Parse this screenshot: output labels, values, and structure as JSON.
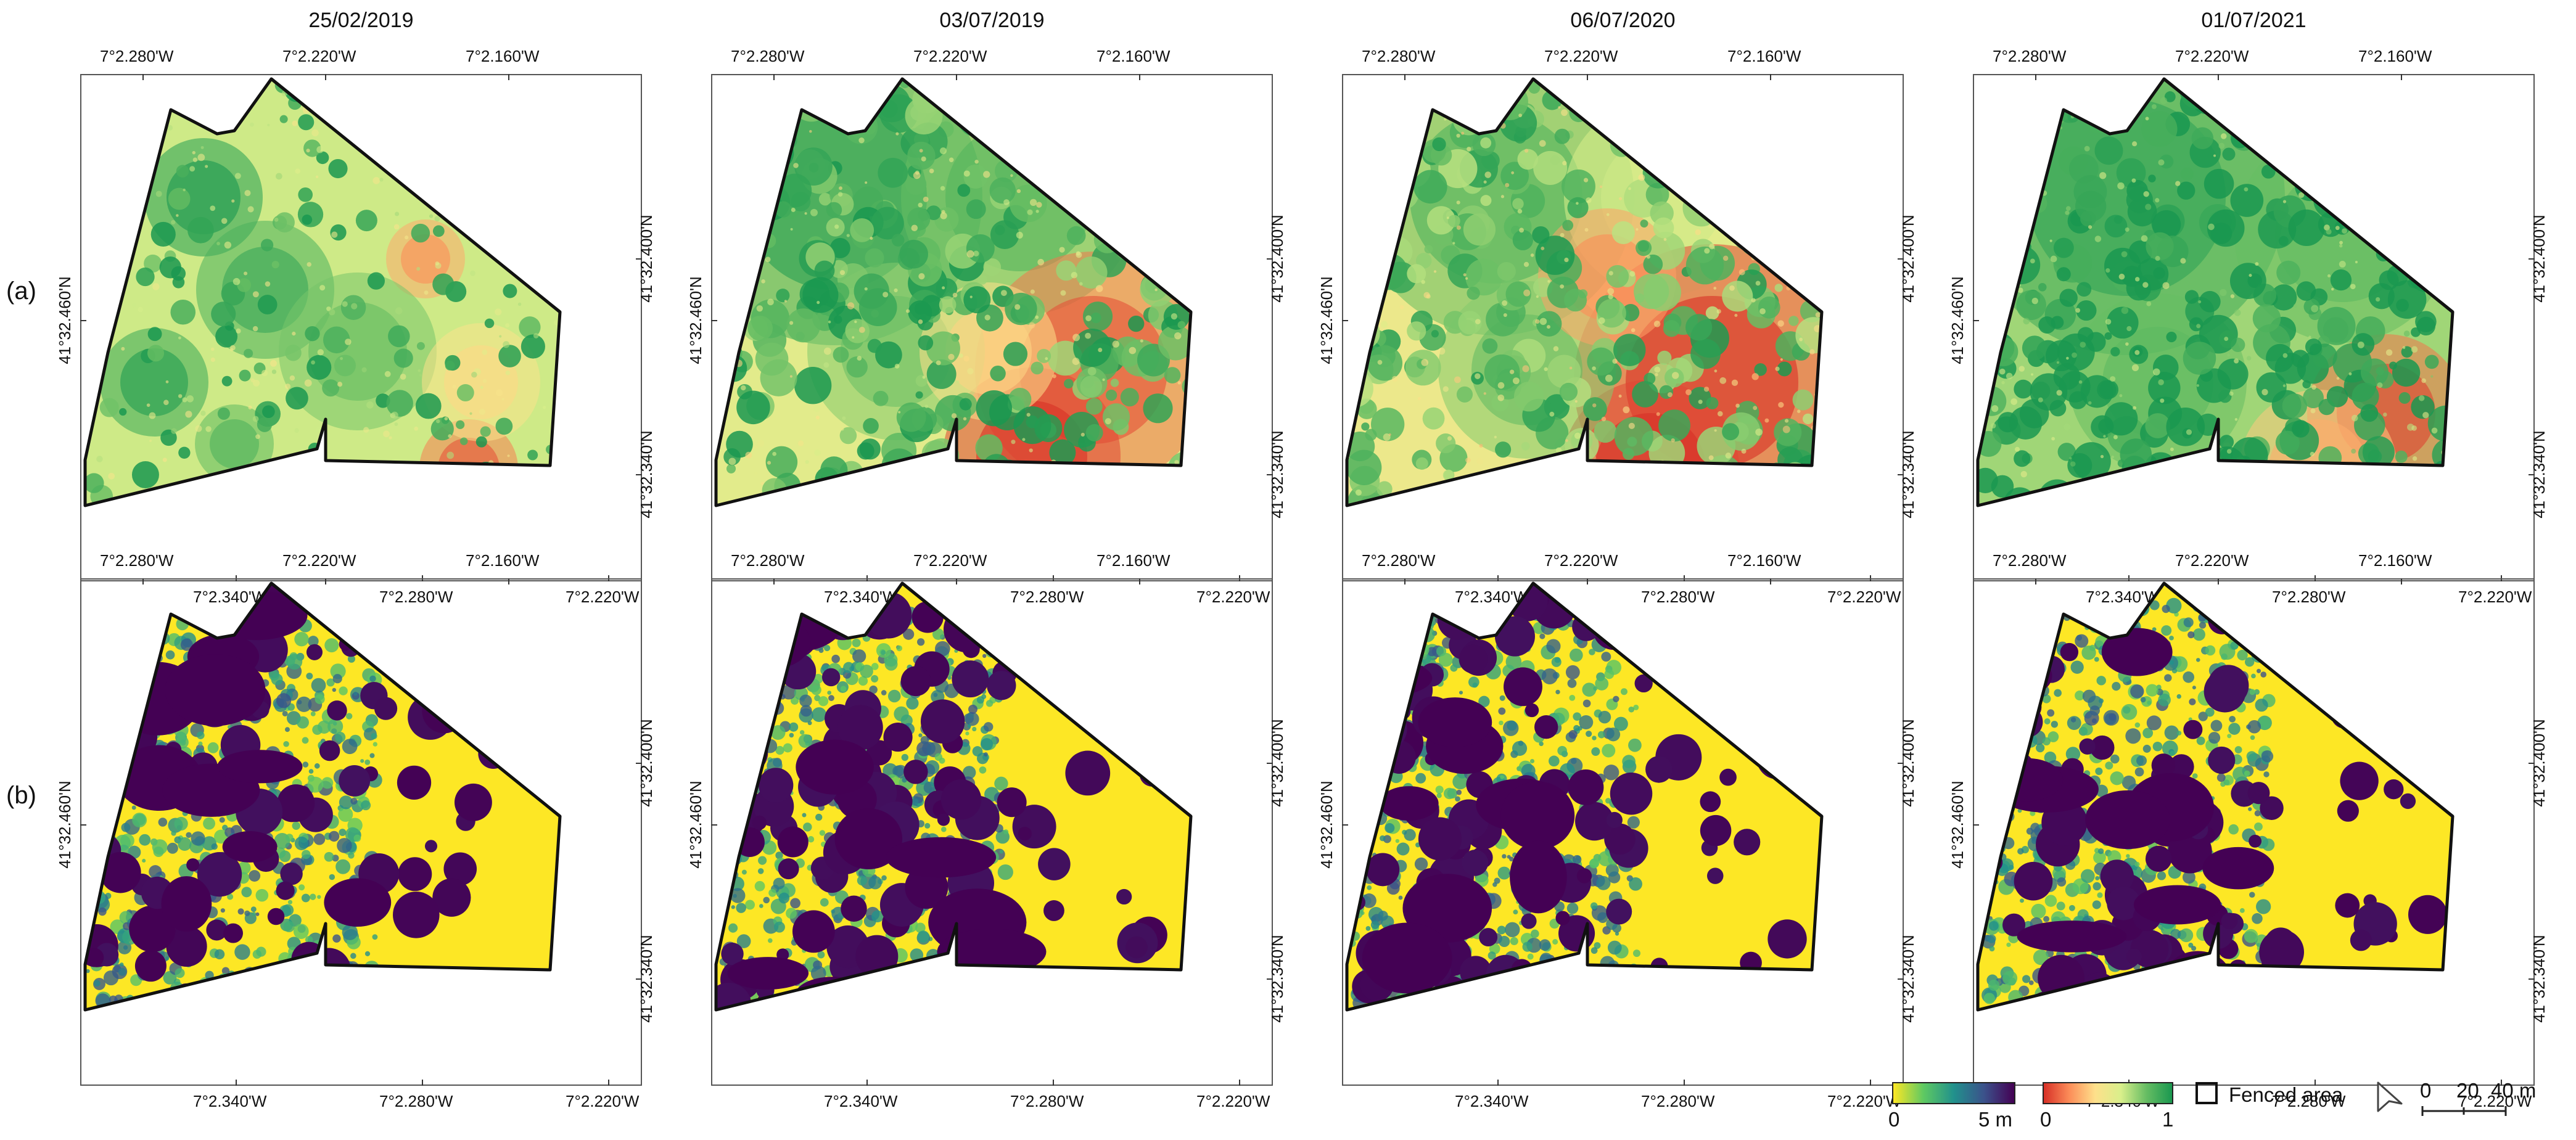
{
  "dates": [
    "25/02/2019",
    "03/07/2019",
    "06/07/2020",
    "01/07/2021"
  ],
  "row_labels": [
    "(a)",
    "(b)"
  ],
  "axes": {
    "top_ticks": [
      "7°2.280'W",
      "7°2.220'W",
      "7°2.160'W"
    ],
    "bottom_ticks": [
      "7°2.340'W",
      "7°2.280'W",
      "7°2.220'W"
    ],
    "left_ticks": [
      "41°32.460'N"
    ],
    "right_ticks": [
      "41°32.400'N",
      "41°32.340'N"
    ]
  },
  "legend": {
    "height_scale": {
      "min": "0",
      "max": "5 m",
      "colors": [
        "#fde725",
        "#5ec962",
        "#21918c",
        "#3b528b",
        "#440154"
      ]
    },
    "index_scale": {
      "min": "0",
      "max": "1",
      "colors": [
        "#d73027",
        "#fc8d59",
        "#fee08b",
        "#d9ef8b",
        "#66bd63",
        "#1a9850"
      ]
    },
    "fenced_label": "Fenced area",
    "scalebar": {
      "ticks": [
        "0",
        "20",
        "40 m"
      ]
    },
    "north_icon": "north-arrow-icon"
  }
}
